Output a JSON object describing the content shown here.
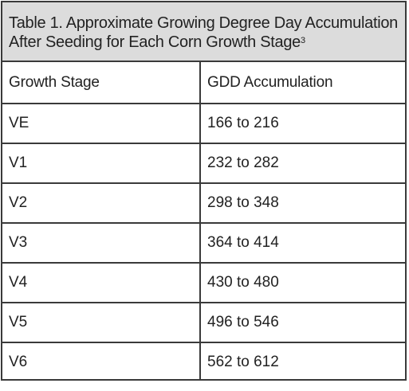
{
  "table": {
    "caption_main": "Table 1. Approximate Growing Degree Day Accumulation After Seeding for Each Corn Growth Stage",
    "caption_superscript": "3",
    "headers": [
      "Growth Stage",
      "GDD Accumulation"
    ],
    "rows": [
      [
        "VE",
        "166 to 216"
      ],
      [
        "V1",
        "232 to 282"
      ],
      [
        "V2",
        "298 to 348"
      ],
      [
        "V3",
        "364 to 414"
      ],
      [
        "V4",
        "430 to 480"
      ],
      [
        "V5",
        "496 to 546"
      ],
      [
        "V6",
        "562 to 612"
      ]
    ]
  }
}
